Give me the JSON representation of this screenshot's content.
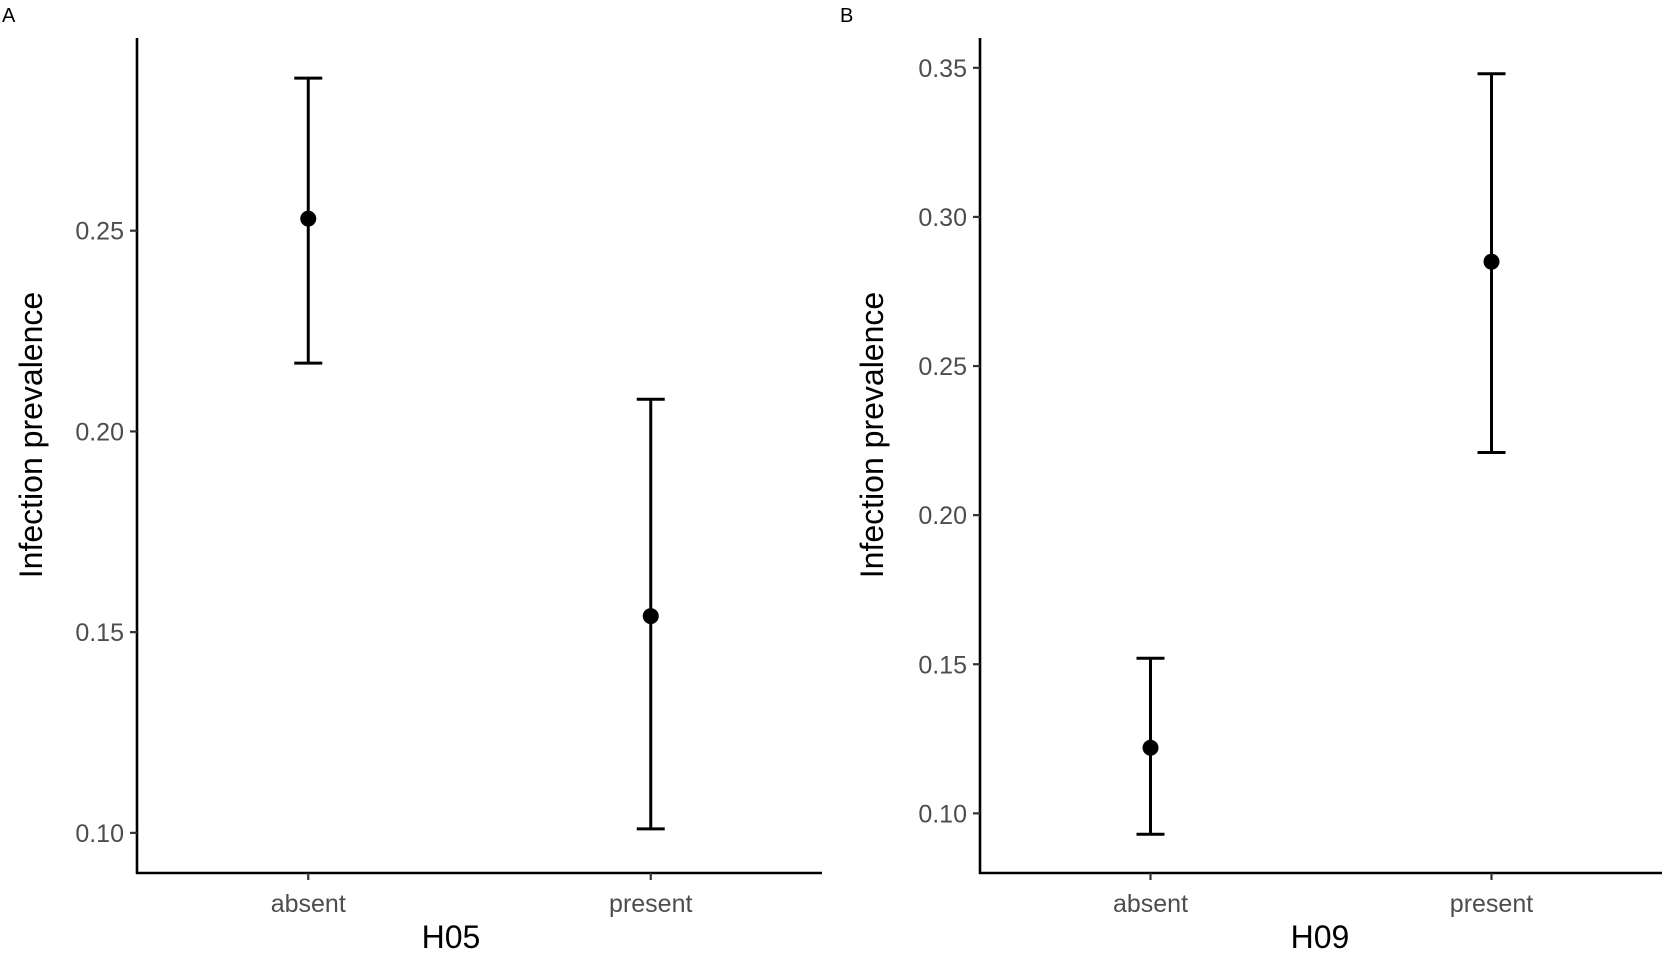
{
  "chart_data": [
    {
      "panel_label": "A",
      "type": "scatter",
      "xlabel": "H05",
      "ylabel": "Infection prevalence",
      "categories": [
        "absent",
        "present"
      ],
      "values": [
        0.253,
        0.154
      ],
      "lower": [
        0.217,
        0.101
      ],
      "upper": [
        0.288,
        0.208
      ],
      "ylim": [
        0.09,
        0.298
      ],
      "yticks": [
        0.1,
        0.15,
        0.2,
        0.25
      ],
      "ytick_labels": [
        "0.10",
        "0.15",
        "0.20",
        "0.25"
      ],
      "grid": false,
      "error_bars": true
    },
    {
      "panel_label": "B",
      "type": "scatter",
      "xlabel": "H09",
      "ylabel": "Infection prevalence",
      "categories": [
        "absent",
        "present"
      ],
      "values": [
        0.122,
        0.285
      ],
      "lower": [
        0.093,
        0.221
      ],
      "upper": [
        0.152,
        0.348
      ],
      "ylim": [
        0.08,
        0.36
      ],
      "yticks": [
        0.1,
        0.15,
        0.2,
        0.25,
        0.3,
        0.35
      ],
      "ytick_labels": [
        "0.10",
        "0.15",
        "0.20",
        "0.25",
        "0.30",
        "0.35"
      ],
      "grid": false,
      "error_bars": true
    }
  ]
}
